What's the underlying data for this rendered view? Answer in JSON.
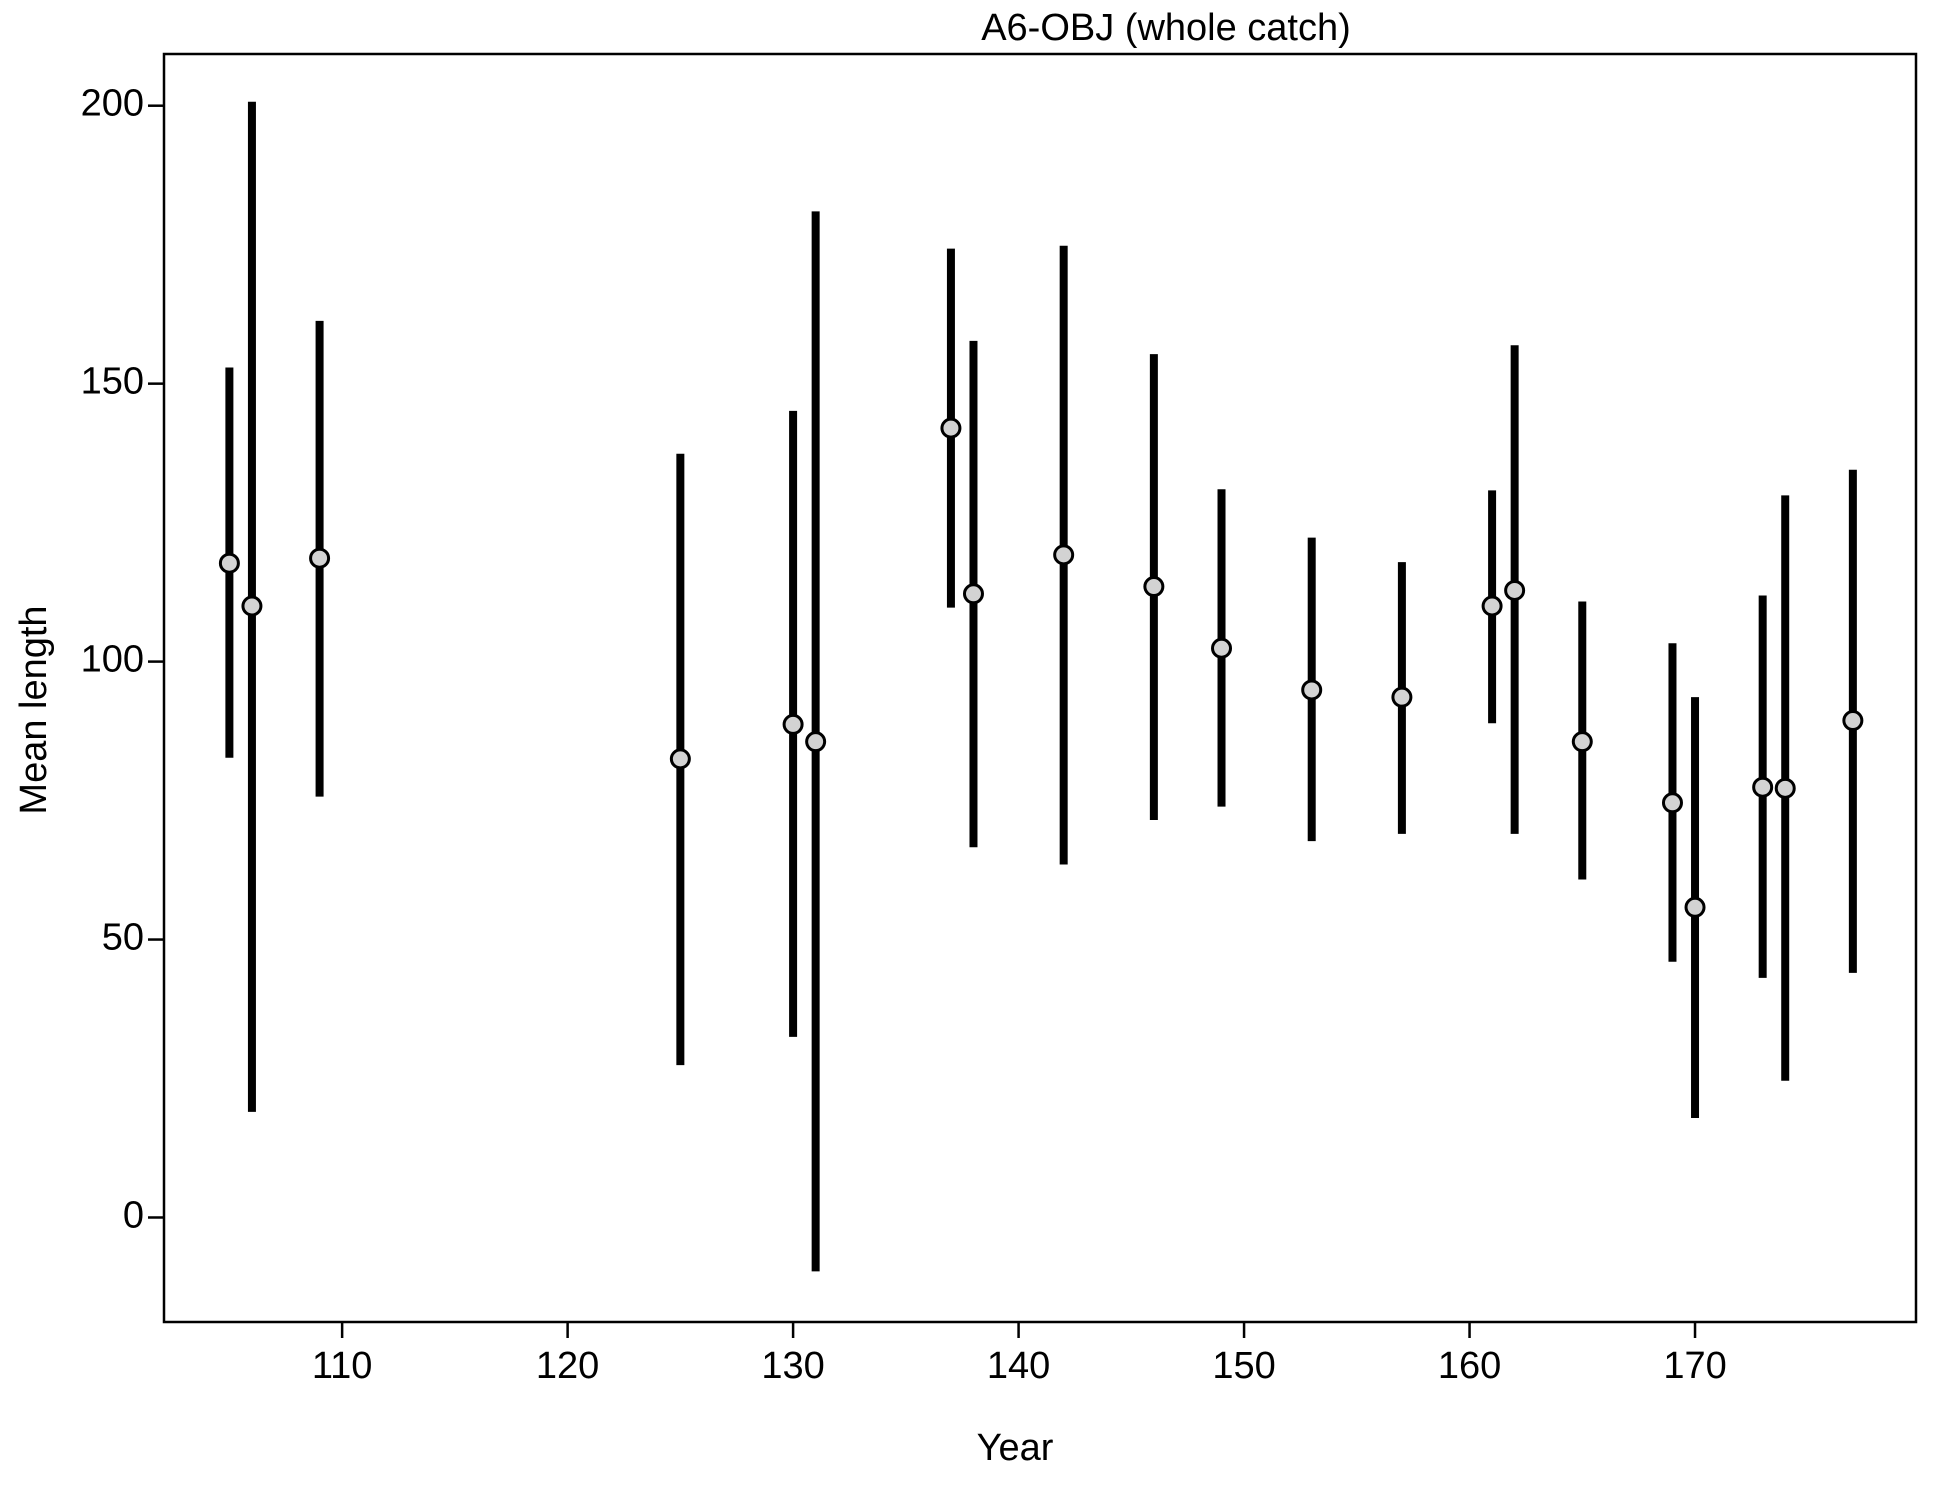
{
  "chart_data": {
    "type": "errorbar",
    "title": "A6-OBJ (whole catch)",
    "x_label": "Year",
    "y_label": "Mean length",
    "x": [
      105,
      106,
      109,
      125,
      130,
      131,
      137,
      138,
      142,
      146,
      149,
      153,
      157,
      161,
      162,
      165,
      169,
      170,
      173,
      174,
      177
    ],
    "values": [
      117.7,
      110,
      118.6,
      82.5,
      88.7,
      85.6,
      142,
      112.2,
      119.2,
      113.5,
      102.4,
      94.9,
      93.6,
      110,
      112.8,
      85.6,
      74.6,
      55.8,
      77.4,
      77.2,
      89.4
    ],
    "lower": [
      82.7,
      19,
      75.7,
      27.4,
      32.5,
      -9.7,
      109.7,
      66.6,
      63.5,
      71.5,
      73.9,
      67.7,
      69,
      88.9,
      69,
      60.8,
      46,
      17.9,
      43.1,
      24.6,
      44
    ],
    "upper": [
      152.9,
      200.7,
      161.3,
      137.4,
      145.1,
      181,
      174.3,
      157.7,
      174.8,
      155.3,
      131,
      122.3,
      117.9,
      130.8,
      156.9,
      110.8,
      103.3,
      93.6,
      111.9,
      129.9,
      134.5
    ],
    "point_color": "#d3d3d3",
    "bar_color": "#000000",
    "xlim": [
      102.1,
      179.8
    ],
    "xticks": [
      110,
      120,
      130,
      140,
      150,
      160,
      170
    ],
    "ylim": [
      -18.8,
      209.3
    ],
    "yticks": [
      0,
      50,
      100,
      150,
      200
    ]
  }
}
